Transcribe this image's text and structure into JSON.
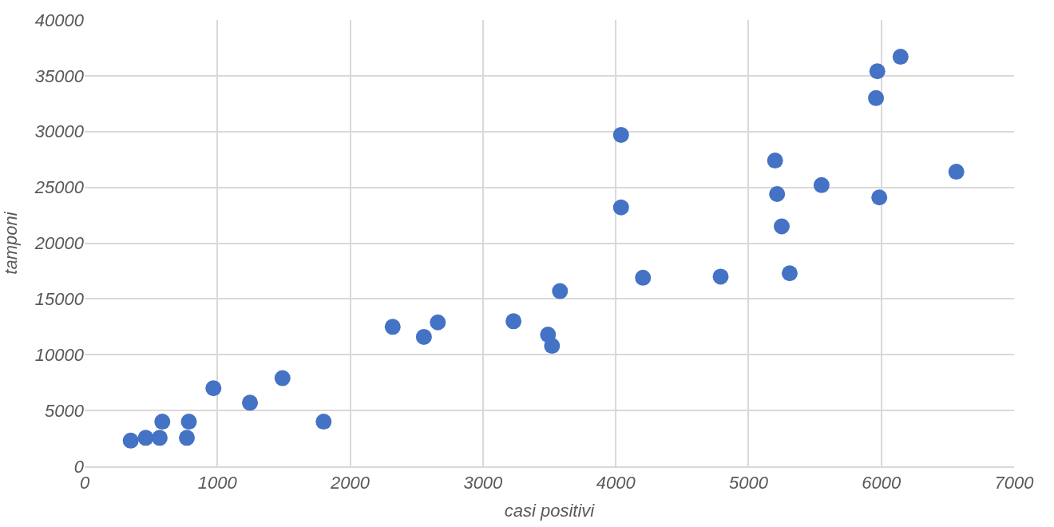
{
  "chart_data": {
    "type": "scatter",
    "xlabel": "casi positivi",
    "ylabel": "tamponi",
    "x": [
      347,
      460,
      565,
      585,
      770,
      785,
      970,
      1245,
      1490,
      1800,
      2320,
      2555,
      2660,
      3230,
      3490,
      3520,
      3580,
      4040,
      4040,
      4205,
      4790,
      5200,
      5215,
      5250,
      5310,
      5550,
      5960,
      5970,
      5985,
      6145,
      6565
    ],
    "series": [
      {
        "color": "#4472c4",
        "values": [
          2300,
          2550,
          2550,
          4000,
          2550,
          4000,
          7000,
          5700,
          7900,
          4000,
          12500,
          11600,
          12900,
          13000,
          11800,
          10800,
          15700,
          29700,
          23200,
          16900,
          17000,
          27400,
          24400,
          21500,
          17300,
          25200,
          33000,
          35400,
          24100,
          36700,
          26400
        ]
      }
    ],
    "xlim": [
      0,
      7000
    ],
    "xticks": [
      0,
      1000,
      2000,
      3000,
      4000,
      5000,
      6000,
      7000
    ],
    "ylim": [
      0,
      40000
    ],
    "yticks": [
      0,
      5000,
      10000,
      15000,
      20000,
      25000,
      30000,
      35000,
      40000
    ],
    "grid": true,
    "marker": "circle"
  }
}
